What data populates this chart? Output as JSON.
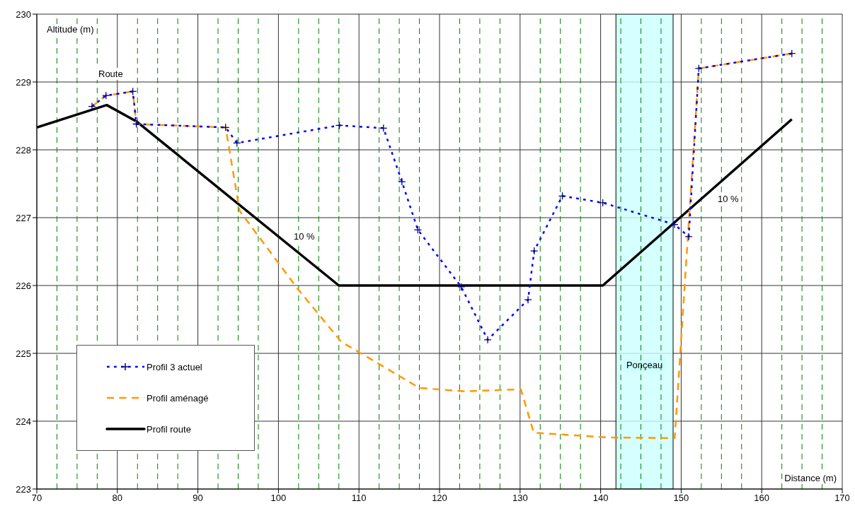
{
  "chart_data": {
    "type": "line",
    "xlabel": "Distance (m)",
    "ylabel": "Altitude (m)",
    "xlim": [
      70,
      170
    ],
    "xticks": [
      70,
      80,
      90,
      100,
      110,
      120,
      130,
      140,
      150,
      160,
      170
    ],
    "ylim": [
      223,
      230
    ],
    "yticks": [
      223,
      224,
      225,
      226,
      227,
      228,
      229,
      230
    ],
    "grid": true,
    "legend": "bottom left",
    "series": [
      {
        "name": "Profil 3 actuel",
        "color": "#0000ff",
        "line_style": "dotted",
        "marker": "cross",
        "x": [
          76.85,
          78.59,
          81.92,
          82.36,
          93.44,
          94.85,
          107.56,
          113.04,
          115.33,
          117.31,
          122.69,
          125.98,
          130.99,
          131.75,
          135.25,
          140.27,
          149.17,
          150.94,
          152.19,
          163.74
        ],
        "values": [
          228.64,
          228.8,
          228.86,
          228.38,
          228.33,
          228.1,
          228.36,
          228.32,
          227.53,
          226.82,
          225.98,
          225.2,
          225.79,
          226.51,
          227.32,
          227.22,
          226.9,
          226.72,
          229.2,
          229.42
        ]
      },
      {
        "name": "Profil aménagé",
        "color": "#ff9900",
        "line_style": "dashed",
        "marker": "none",
        "x": [
          76.85,
          78.59,
          81.92,
          82.36,
          93.44,
          95.18,
          102.33,
          107.8,
          112.4,
          117.5,
          123.1,
          130.1,
          131.7,
          141.0,
          149.2,
          152.19,
          163.74
        ],
        "values": [
          228.64,
          228.8,
          228.86,
          228.38,
          228.33,
          227.1,
          225.96,
          225.17,
          224.85,
          224.49,
          224.44,
          224.47,
          223.83,
          223.76,
          223.75,
          229.2,
          229.42
        ]
      },
      {
        "name": "Profil route",
        "color": "#000000",
        "line_style": "solid",
        "marker": "none",
        "x": [
          70,
          78.68,
          82.36,
          107.5,
          140.27,
          163.74
        ],
        "values": [
          228.33,
          228.66,
          228.42,
          226.0,
          226.0,
          228.45
        ]
      }
    ],
    "ref_lines": [
      {
        "axis": "x",
        "value": 72.5,
        "color": "#008000",
        "line_style": "dashed"
      },
      {
        "axis": "x",
        "value": 75,
        "color": "#008000",
        "line_style": "dashed"
      },
      {
        "axis": "x",
        "value": 77.5,
        "color": "#008000",
        "line_style": "dashed"
      },
      {
        "axis": "x",
        "value": 82.5,
        "color": "#008000",
        "line_style": "dashed"
      },
      {
        "axis": "x",
        "value": 85,
        "color": "#008000",
        "line_style": "dashed"
      },
      {
        "axis": "x",
        "value": 87.5,
        "color": "#008000",
        "line_style": "dashed"
      },
      {
        "axis": "x",
        "value": 92.5,
        "color": "#008000",
        "line_style": "dashed"
      },
      {
        "axis": "x",
        "value": 95,
        "color": "#008000",
        "line_style": "dashed"
      },
      {
        "axis": "x",
        "value": 97.5,
        "color": "#008000",
        "line_style": "dashed"
      },
      {
        "axis": "x",
        "value": 102.5,
        "color": "#008000",
        "line_style": "dashed"
      },
      {
        "axis": "x",
        "value": 105,
        "color": "#008000",
        "line_style": "dashed"
      },
      {
        "axis": "x",
        "value": 107.5,
        "color": "#008000",
        "line_style": "dashed"
      },
      {
        "axis": "x",
        "value": 112.5,
        "color": "#008000",
        "line_style": "dashed"
      },
      {
        "axis": "x",
        "value": 115,
        "color": "#008000",
        "line_style": "dashed"
      },
      {
        "axis": "x",
        "value": 117.5,
        "color": "#008000",
        "line_style": "dashed"
      },
      {
        "axis": "x",
        "value": 122.5,
        "color": "#008000",
        "line_style": "dashed"
      },
      {
        "axis": "x",
        "value": 125,
        "color": "#008000",
        "line_style": "dashed"
      },
      {
        "axis": "x",
        "value": 127.5,
        "color": "#008000",
        "line_style": "dashed"
      },
      {
        "axis": "x",
        "value": 132.5,
        "color": "#008000",
        "line_style": "dashed"
      },
      {
        "axis": "x",
        "value": 135,
        "color": "#008000",
        "line_style": "dashed"
      },
      {
        "axis": "x",
        "value": 137.5,
        "color": "#008000",
        "line_style": "dashed"
      },
      {
        "axis": "x",
        "value": 142.5,
        "color": "#008000",
        "line_style": "dashed"
      },
      {
        "axis": "x",
        "value": 145,
        "color": "#008000",
        "line_style": "dashed"
      },
      {
        "axis": "x",
        "value": 147.5,
        "color": "#008000",
        "line_style": "dashed"
      },
      {
        "axis": "x",
        "value": 152.5,
        "color": "#008000",
        "line_style": "dashed"
      },
      {
        "axis": "x",
        "value": 155,
        "color": "#008000",
        "line_style": "dashed"
      },
      {
        "axis": "x",
        "value": 157.5,
        "color": "#008000",
        "line_style": "dashed"
      },
      {
        "axis": "x",
        "value": 162.5,
        "color": "#008000",
        "line_style": "dashed"
      },
      {
        "axis": "x",
        "value": 165,
        "color": "#008000",
        "line_style": "dashed"
      },
      {
        "axis": "x",
        "value": 167.5,
        "color": "#008000",
        "line_style": "dashed"
      }
    ],
    "bands": [
      {
        "axis": "x",
        "from": 141.9,
        "to": 149.0,
        "label": "Ponçeau",
        "color": "#ccffff"
      }
    ],
    "annotations": [
      "Route",
      "10 %",
      "10 %"
    ]
  }
}
